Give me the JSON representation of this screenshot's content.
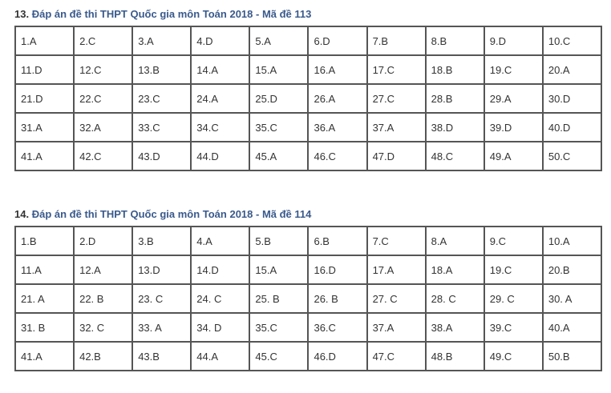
{
  "sections": [
    {
      "number": "13.",
      "title": "Đáp án đề thi THPT Quốc gia môn Toán 2018 - Mã đề 113",
      "rows": [
        [
          "1.A",
          "2.C",
          "3.A",
          "4.D",
          "5.A",
          "6.D",
          "7.B",
          "8.B",
          "9.D",
          "10.C"
        ],
        [
          "11.D",
          "12.C",
          "13.B",
          "14.A",
          "15.A",
          "16.A",
          "17.C",
          "18.B",
          "19.C",
          "20.A"
        ],
        [
          "21.D",
          "22.C",
          "23.C",
          "24.A",
          "25.D",
          "26.A",
          "27.C",
          "28.B",
          "29.A",
          "30.D"
        ],
        [
          "31.A",
          "32.A",
          "33.C",
          "34.C",
          "35.C",
          "36.A",
          "37.A",
          "38.D",
          "39.D",
          "40.D"
        ],
        [
          "41.A",
          "42.C",
          "43.D",
          "44.D",
          "45.A",
          "46.C",
          "47.D",
          "48.C",
          "49.A",
          "50.C"
        ]
      ]
    },
    {
      "number": "14.",
      "title": "Đáp án đề thi THPT Quốc gia môn Toán 2018 - Mã đề 114",
      "rows": [
        [
          "1.B",
          "2.D",
          "3.B",
          "4.A",
          "5.B",
          "6.B",
          "7.C",
          "8.A",
          "9.C",
          "10.A"
        ],
        [
          "11.A",
          "12.A",
          "13.D",
          "14.D",
          "15.A",
          "16.D",
          "17.A",
          "18.A",
          "19.C",
          "20.B"
        ],
        [
          "21. A",
          "22. B",
          "23. C",
          "24. C",
          "25. B",
          "26. B",
          "27. C",
          "28. C",
          "29. C",
          "30. A"
        ],
        [
          "31. B",
          "32. C",
          "33. A",
          "34. D",
          "35.C",
          "36.C",
          "37.A",
          "38.A",
          "39.C",
          "40.A"
        ],
        [
          "41.A",
          "42.B",
          "43.B",
          "44.A",
          "45.C",
          "46.D",
          "47.C",
          "48.B",
          "49.C",
          "50.B"
        ]
      ]
    }
  ]
}
